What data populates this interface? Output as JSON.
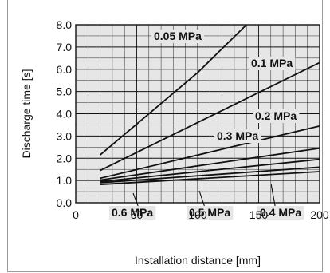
{
  "chart_data": {
    "type": "line",
    "xlabel": "Installation distance [mm]",
    "ylabel": "Discharge time [s]",
    "xlim": [
      0,
      200
    ],
    "ylim": [
      0,
      8
    ],
    "x_ticks": [
      "0",
      "50",
      "100",
      "150",
      "200"
    ],
    "y_ticks": [
      "0.0",
      "1.0",
      "2.0",
      "3.0",
      "4.0",
      "5.0",
      "6.0",
      "7.0",
      "8.0"
    ],
    "grid": true,
    "legend": "none",
    "line_color": "#111111",
    "plot_background": "#e6e6e6",
    "series": [
      {
        "name": "0.05 MPa",
        "x": [
          20,
          100,
          140
        ],
        "y": [
          2.15,
          5.85,
          8.0
        ]
      },
      {
        "name": "0.1 MPa",
        "x": [
          20,
          200
        ],
        "y": [
          1.45,
          6.3
        ]
      },
      {
        "name": "0.2 MPa",
        "x": [
          20,
          200
        ],
        "y": [
          1.1,
          3.45
        ]
      },
      {
        "name": "0.3 MPa",
        "x": [
          20,
          200
        ],
        "y": [
          1.02,
          2.45
        ]
      },
      {
        "name": "0.4 MPa",
        "x": [
          20,
          200
        ],
        "y": [
          0.95,
          1.95
        ]
      },
      {
        "name": "0.5 MPa",
        "x": [
          20,
          200
        ],
        "y": [
          0.9,
          1.6
        ]
      },
      {
        "name": "0.6 MPa",
        "x": [
          20,
          200
        ],
        "y": [
          0.82,
          1.4
        ]
      }
    ]
  }
}
